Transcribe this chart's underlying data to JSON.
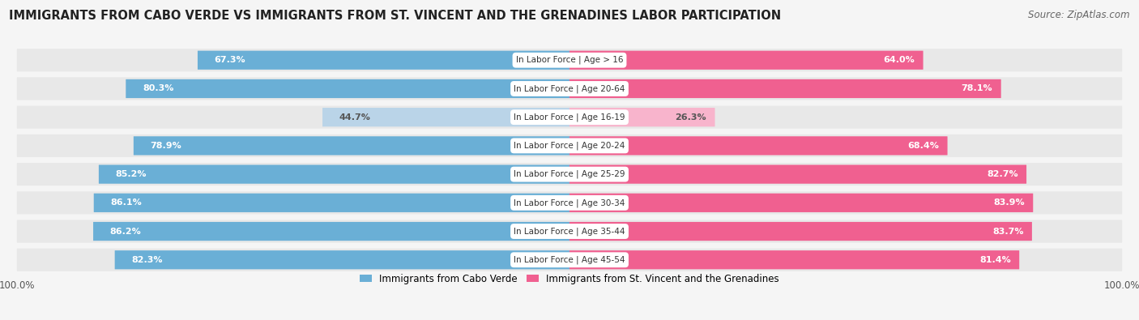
{
  "title": "IMMIGRANTS FROM CABO VERDE VS IMMIGRANTS FROM ST. VINCENT AND THE GRENADINES LABOR PARTICIPATION",
  "source": "Source: ZipAtlas.com",
  "categories": [
    "In Labor Force | Age > 16",
    "In Labor Force | Age 20-64",
    "In Labor Force | Age 16-19",
    "In Labor Force | Age 20-24",
    "In Labor Force | Age 25-29",
    "In Labor Force | Age 30-34",
    "In Labor Force | Age 35-44",
    "In Labor Force | Age 45-54"
  ],
  "cabo_verde_values": [
    67.3,
    80.3,
    44.7,
    78.9,
    85.2,
    86.1,
    86.2,
    82.3
  ],
  "st_vincent_values": [
    64.0,
    78.1,
    26.3,
    68.4,
    82.7,
    83.9,
    83.7,
    81.4
  ],
  "cabo_verde_color": "#6aafd6",
  "cabo_verde_color_light": "#bad4e8",
  "st_vincent_color": "#f06090",
  "st_vincent_color_light": "#f8b4cc",
  "row_bg_color": "#e8e8e8",
  "bg_color": "#f5f5f5",
  "label1": "Immigrants from Cabo Verde",
  "label2": "Immigrants from St. Vincent and the Grenadines",
  "title_fontsize": 10.5,
  "source_fontsize": 8.5,
  "bar_label_fontsize": 8,
  "cat_label_fontsize": 7.5
}
